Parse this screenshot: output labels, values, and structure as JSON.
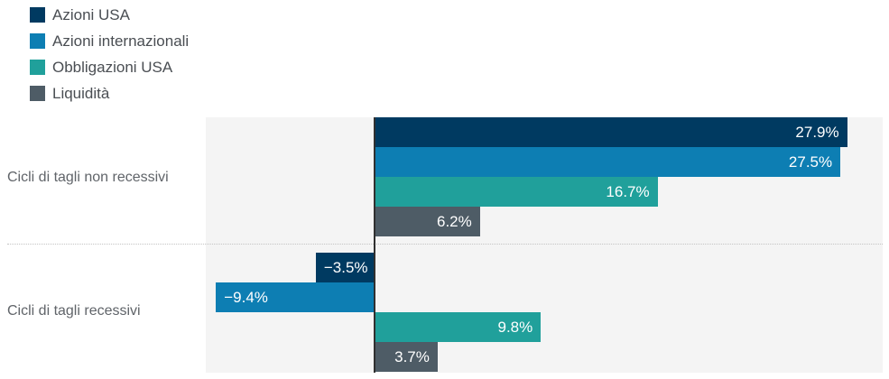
{
  "chart_data": {
    "type": "bar",
    "orientation": "horizontal",
    "title": "",
    "categories": [
      "Cicli di tagli non recessivi",
      "Cicli di tagli recessivi"
    ],
    "series": [
      {
        "name": "Azioni USA",
        "color": "#003a61",
        "values": [
          27.9,
          -3.5
        ],
        "labels": [
          "27.9%",
          "−3.5%"
        ]
      },
      {
        "name": "Azioni internazionali",
        "color": "#0d7eb3",
        "values": [
          27.5,
          -9.4
        ],
        "labels": [
          "27.5%",
          "−9.4%"
        ]
      },
      {
        "name": "Obbligazioni USA",
        "color": "#20a09b",
        "values": [
          16.7,
          9.8
        ],
        "labels": [
          "16.7%",
          "9.8%"
        ]
      },
      {
        "name": "Liquidità",
        "color": "#4e5c66",
        "values": [
          6.2,
          3.7
        ],
        "labels": [
          "6.2%",
          "3.7%"
        ]
      }
    ],
    "unit": "%",
    "xlim": [
      -10,
      30
    ],
    "grid": false,
    "legend_position": "top-left",
    "plot_background": "#f4f4f4",
    "zero_line_color": "#303030",
    "divider_style": "dotted",
    "value_label_color": "#ffffff"
  }
}
